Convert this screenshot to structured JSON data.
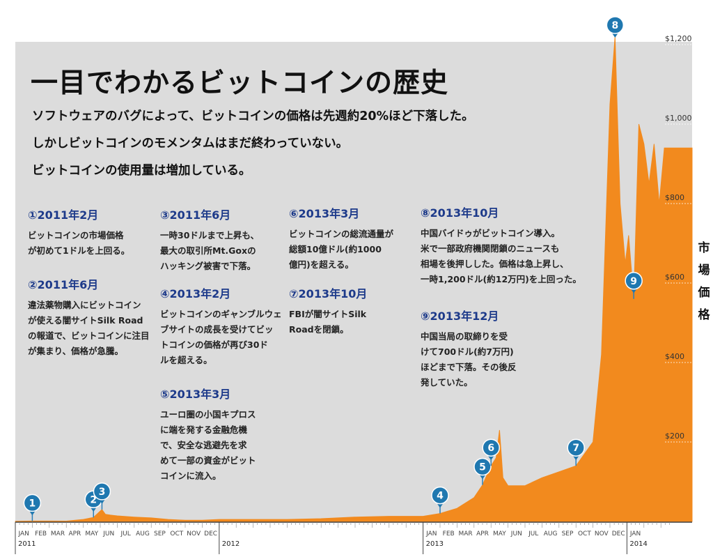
{
  "header": {
    "title": "一目でわかるビットコインの歴史",
    "lead": [
      "ソフトウェアのバグによって、ビットコインの価格は先週約20%ほど下落した。",
      "しかしビットコインのモメンタムはまだ終わっていない。",
      "ビットコインの使用量は増加している。"
    ]
  },
  "events": [
    {
      "heading": "①2011年2月",
      "body": "ビットコインの市場価格\nが初めて1ドルを上回る。"
    },
    {
      "heading": "②2011年6月",
      "body": "違法薬物購入にビットコイン\nが使える闇サイトSilk Road\nの報道で、ビットコインに注目\nが集まり、価格が急騰。"
    },
    {
      "heading": "③2011年6月",
      "body": "一時30ドルまで上昇も、\n最大の取引所Mt.Goxの\nハッキング被害で下落。"
    },
    {
      "heading": "④2013年2月",
      "body": "ビットコインのギャンブルウェ\nブサイトの成長を受けてビッ\nトコインの価格が再び30ド\nルを超える。"
    },
    {
      "heading": "⑤2013年3月",
      "body": "ユーロ圏の小国キプロス\nに端を発する金融危機\nで、安全な逃避先を求\nめて一部の資金がビット\nコインに流入。"
    },
    {
      "heading": "⑥2013年3月",
      "body": "ビットコインの総流通量が\n総額10億ドル(約1000\n億円)を超える。"
    },
    {
      "heading": "⑦2013年10月",
      "body": "FBIが闇サイトSilk\nRoadを閉鎖。"
    },
    {
      "heading": "⑧2013年10月",
      "body": "中国バイドゥがビットコイン導入。\n米で一部政府機関閉鎖のニュースも\n相場を後押しした。価格は急上昇し、\n一時1,200ドル(約12万円)を上回った。"
    },
    {
      "heading": "⑨2013年12月",
      "body": "中国当局の取締りを受\nけて700ドル(約7万円)\nほどまで下落。その後反\n発していた。"
    }
  ],
  "chart_data": {
    "type": "area",
    "title": "",
    "xlabel": "",
    "ylabel": "市場価格",
    "ylim": [
      0,
      1200
    ],
    "yticks": [
      "$200",
      "$400",
      "$600",
      "$800",
      "$1,000",
      "$1,200"
    ],
    "ytick_values": [
      200,
      400,
      600,
      800,
      1000,
      1200
    ],
    "month_labels": [
      "JAN",
      "FEB",
      "MAR",
      "APR",
      "MAY",
      "JUN",
      "JUL",
      "AUG",
      "SEP",
      "OCT",
      "NOV",
      "DEC",
      "",
      "JAN",
      "FEB",
      "MAR",
      "APR",
      "MAY",
      "JUN",
      "JUL",
      "AUG",
      "SEP",
      "OCT",
      "NOV",
      "DEC",
      "JAN"
    ],
    "year_labels": [
      {
        "month_index": 0,
        "label": "2011"
      },
      {
        "month_index": 12,
        "label": "2012"
      },
      {
        "month_index": 24,
        "label": "2013"
      },
      {
        "month_index": 36,
        "label": "2014"
      }
    ],
    "x_unit": "months since Jan 2011",
    "x": [
      0,
      1,
      2,
      3,
      4,
      4.6,
      5.1,
      5.3,
      5.6,
      6,
      7,
      8,
      9,
      10,
      11,
      12,
      14,
      16,
      18,
      20,
      22,
      24,
      25,
      26,
      27,
      27.5,
      28.0,
      28.3,
      28.5,
      28.7,
      29,
      30,
      31,
      32,
      33,
      34,
      34.5,
      35,
      35.3,
      35.6,
      35.9,
      36.1,
      36.4,
      36.7,
      37,
      37.3,
      37.6,
      37.9,
      38.2
    ],
    "series": [
      {
        "name": "",
        "color": "#f28a1e",
        "values": [
          0.3,
          1,
          1,
          0.8,
          5,
          10,
          30,
          18,
          16,
          14,
          11,
          9,
          5,
          3,
          3,
          5,
          5,
          5,
          7,
          11,
          13,
          13,
          20,
          33,
          60,
          92,
          140,
          160,
          230,
          110,
          90,
          90,
          110,
          125,
          140,
          200,
          420,
          1050,
          1220,
          800,
          650,
          720,
          560,
          1000,
          950,
          850,
          950,
          800,
          940
        ]
      }
    ],
    "markers": [
      {
        "id": "1",
        "x": 1,
        "y": 1
      },
      {
        "id": "2",
        "x": 4.6,
        "y": 10
      },
      {
        "id": "3",
        "x": 5.1,
        "y": 30
      },
      {
        "id": "4",
        "x": 25,
        "y": 20
      },
      {
        "id": "5",
        "x": 27.5,
        "y": 92
      },
      {
        "id": "6",
        "x": 28.0,
        "y": 140
      },
      {
        "id": "7",
        "x": 33,
        "y": 140
      },
      {
        "id": "8",
        "x": 35.3,
        "y": 1220
      },
      {
        "id": "9",
        "x": 36.4,
        "y": 560
      }
    ]
  }
}
